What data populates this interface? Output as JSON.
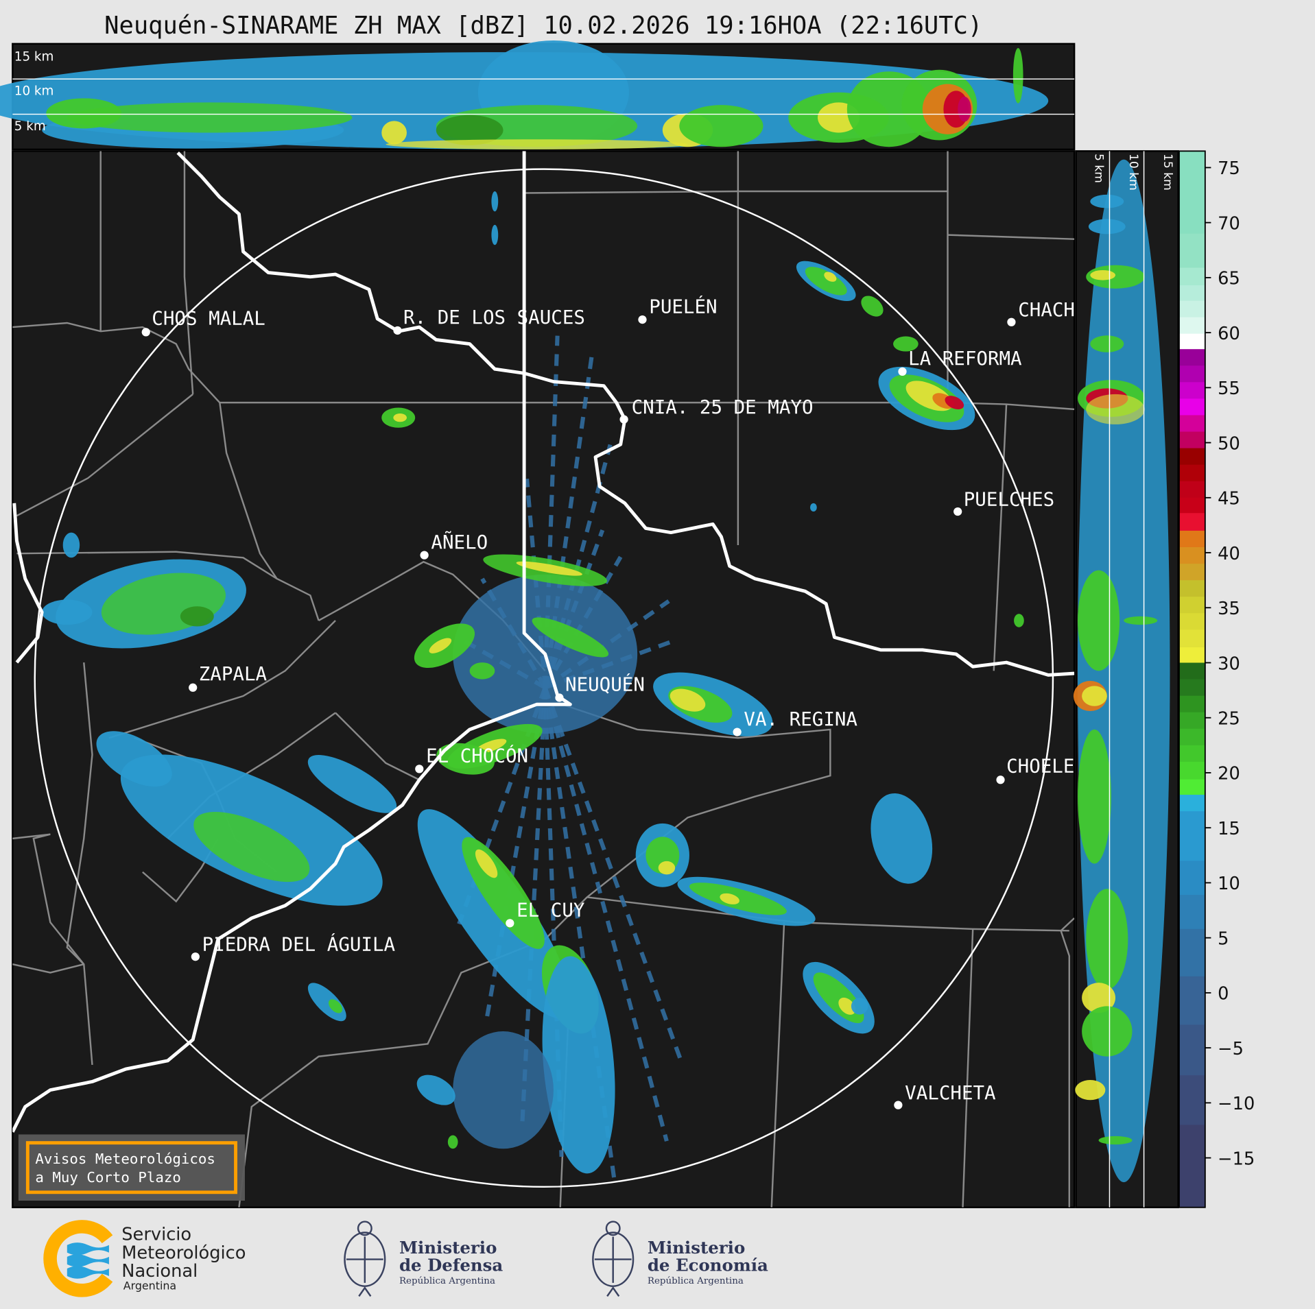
{
  "title": "Neuquén-SINARAME ZH MAX [dBZ] 10.02.2026 19:16HOA (22:16UTC)",
  "top_panel": {
    "height_labels": [
      "15 km",
      "10 km",
      "5 km"
    ]
  },
  "side_panel": {
    "height_labels": [
      "5 km",
      "10 km",
      "15 km"
    ]
  },
  "map": {
    "background": "#1a1a1a",
    "cities": [
      "CHOS MALAL",
      "R. DE LOS SAUCES",
      "PUELÉN",
      "CHACH",
      "LA REFORMA",
      "CNIA. 25 DE MAYO",
      "PUELCHES",
      "AÑELO",
      "ZAPALA",
      "NEUQUÉN",
      "VA. REGINA",
      "EL CHOCÓN",
      "CHOELE",
      "EL CUY",
      "PIEDRA DEL ÁGUILA",
      "VALCHETA"
    ]
  },
  "notice_box": {
    "line1": "Avisos Meteorológicos",
    "line2": "a Muy Corto Plazo",
    "border_color": "#ff9f00"
  },
  "colorbar": {
    "unit": "dBZ",
    "range": [
      -19.5,
      76.5
    ],
    "ticks": [
      "75",
      "70",
      "65",
      "60",
      "55",
      "50",
      "45",
      "40",
      "35",
      "30",
      "25",
      "20",
      "15",
      "10",
      "5",
      "0",
      "−5",
      "−10",
      "−15"
    ],
    "tick_values": [
      75,
      70,
      65,
      60,
      55,
      50,
      45,
      40,
      35,
      30,
      25,
      20,
      15,
      10,
      5,
      0,
      -5,
      -10,
      -15
    ],
    "bins": [
      [
        69,
        76.5,
        "#88dfc0"
      ],
      [
        65.9,
        69,
        "#93e2c4"
      ],
      [
        64.3,
        65.9,
        "#a6e9d0"
      ],
      [
        62.9,
        64.3,
        "#b6eddb"
      ],
      [
        61.4,
        62.9,
        "#c9f2e4"
      ],
      [
        59.9,
        61.4,
        "#def8ef"
      ],
      [
        58.5,
        59.9,
        "#ffffff"
      ],
      [
        57,
        58.5,
        "#990099"
      ],
      [
        55.5,
        57,
        "#b000b0"
      ],
      [
        54,
        55.5,
        "#cc00cc"
      ],
      [
        52.5,
        54,
        "#e800e8"
      ],
      [
        51,
        52.5,
        "#d4009a"
      ],
      [
        49.5,
        51,
        "#c20060"
      ],
      [
        48,
        49.5,
        "#990000"
      ],
      [
        46.5,
        48,
        "#b00008"
      ],
      [
        45,
        46.5,
        "#c00018"
      ],
      [
        43.6,
        45,
        "#c80018"
      ],
      [
        42,
        43.6,
        "#e81030"
      ],
      [
        40.5,
        42,
        "#e07818"
      ],
      [
        39,
        40.5,
        "#d99020"
      ],
      [
        37.5,
        39,
        "#d0a428"
      ],
      [
        36,
        37.5,
        "#c4c02c"
      ],
      [
        34.5,
        36,
        "#d0d030"
      ],
      [
        33,
        34.5,
        "#dada34"
      ],
      [
        31.4,
        33,
        "#e2e238"
      ],
      [
        30,
        31.4,
        "#eeee3a"
      ],
      [
        28.5,
        30,
        "#226c1a"
      ],
      [
        27,
        28.5,
        "#267a1e"
      ],
      [
        25.5,
        27,
        "#2e9420"
      ],
      [
        24,
        25.5,
        "#36a826"
      ],
      [
        22.5,
        24,
        "#3cb82a"
      ],
      [
        21,
        22.5,
        "#42c82c"
      ],
      [
        19.4,
        21,
        "#48d82e"
      ],
      [
        18,
        19.4,
        "#50ec34"
      ],
      [
        16.5,
        18,
        "#2ab0dc"
      ],
      [
        12,
        16.5,
        "#2a9ad0"
      ],
      [
        8.9,
        12,
        "#2a8cc4"
      ],
      [
        5.8,
        8.9,
        "#2e80b6"
      ],
      [
        1.5,
        5.8,
        "#3272a6"
      ],
      [
        -2.9,
        1.5,
        "#386496"
      ],
      [
        -7.5,
        -2.9,
        "#3a5888"
      ],
      [
        -12,
        -7.5,
        "#3c4c7a"
      ],
      [
        -19.5,
        -12,
        "#3d416c"
      ]
    ]
  },
  "footer": {
    "smn": {
      "line1": "Servicio",
      "line2": "Meteorológico",
      "line3": "Nacional",
      "line4": "Argentina",
      "colors": {
        "ring": "#ffb000",
        "waves": "#29a3dd"
      }
    },
    "defensa": {
      "line1": "Ministerio",
      "line2": "de Defensa",
      "line3": "República Argentina"
    },
    "economia": {
      "line1": "Ministerio",
      "line2": "de Economía",
      "line3": "República Argentina"
    }
  }
}
